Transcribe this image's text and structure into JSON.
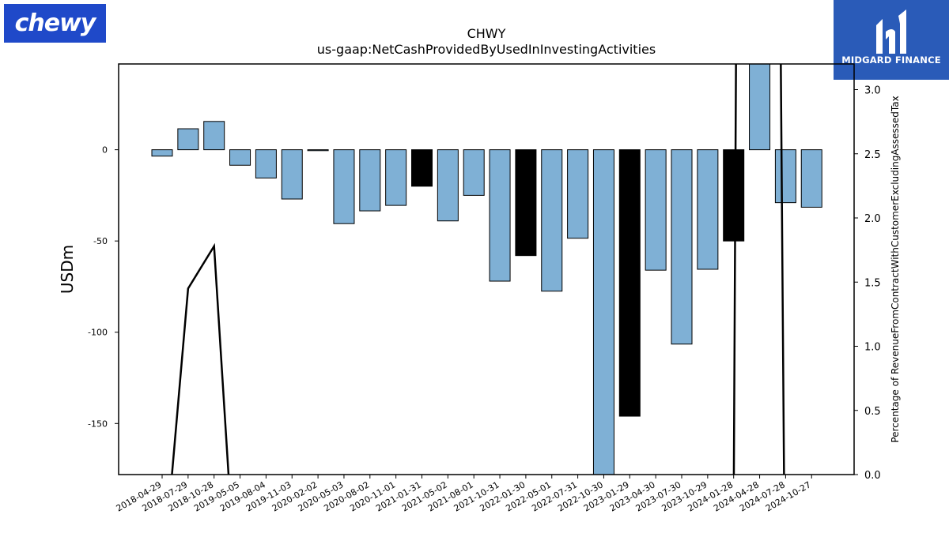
{
  "logos": {
    "left": "chewy",
    "right": "MIDGARD FINANCE"
  },
  "chart_data": {
    "type": "bar",
    "title": "CHWY",
    "subtitle": "us-gaap:NetCashProvidedByUsedInInvestingActivities",
    "ylabel": "USDm",
    "y2label": "Percentage of RevenueFromContractWithCustomerExcludingAssessedTax",
    "ylim": [
      -178,
      47
    ],
    "y2lim": [
      0,
      3.2
    ],
    "yticks": [
      0,
      -50,
      -100,
      -150
    ],
    "y2ticks": [
      "0.0",
      "0.5",
      "1.0",
      "1.5",
      "2.0",
      "2.5",
      "3.0"
    ],
    "categories": [
      "2018-04-29",
      "2018-07-29",
      "2018-10-28",
      "2019-05-05",
      "2019-08-04",
      "2019-11-03",
      "2020-02-02",
      "2020-05-03",
      "2020-08-02",
      "2020-11-01",
      "2021-01-31",
      "2021-05-02",
      "2021-08-01",
      "2021-10-31",
      "2022-01-30",
      "2022-05-01",
      "2022-07-31",
      "2022-10-30",
      "2023-01-29",
      "2023-04-30",
      "2023-07-30",
      "2023-10-29",
      "2024-01-28",
      "2024-04-28",
      "2024-07-28",
      "2024-10-27"
    ],
    "values": [
      -3.5,
      11.5,
      15.5,
      -8.5,
      -15.5,
      -27,
      -0.5,
      -40.5,
      -33.5,
      -30.5,
      -20,
      -39,
      -25,
      -72,
      -58,
      -77.5,
      -48.5,
      -185,
      -146,
      -66,
      -106.5,
      -65.5,
      -50,
      60,
      -29,
      -31.5
    ],
    "highlight": [
      false,
      false,
      false,
      false,
      false,
      false,
      false,
      false,
      false,
      false,
      true,
      false,
      false,
      false,
      true,
      false,
      false,
      false,
      true,
      false,
      false,
      false,
      true,
      false,
      false,
      false
    ],
    "line_series": {
      "axis": "right",
      "x_index": [
        0.25,
        1,
        2,
        2.65
      ],
      "values": [
        -0.3,
        1.45,
        1.78,
        -0.3
      ],
      "x_index_2": [
        22,
        22.1,
        23.8,
        23.95
      ],
      "values_2": [
        -0.3,
        3.6,
        3.6,
        -0.3
      ]
    },
    "grid": false,
    "colors": {
      "bar": "#7fb0d5",
      "highlight": "#000000",
      "line": "#000000",
      "edge": "#000000"
    }
  }
}
